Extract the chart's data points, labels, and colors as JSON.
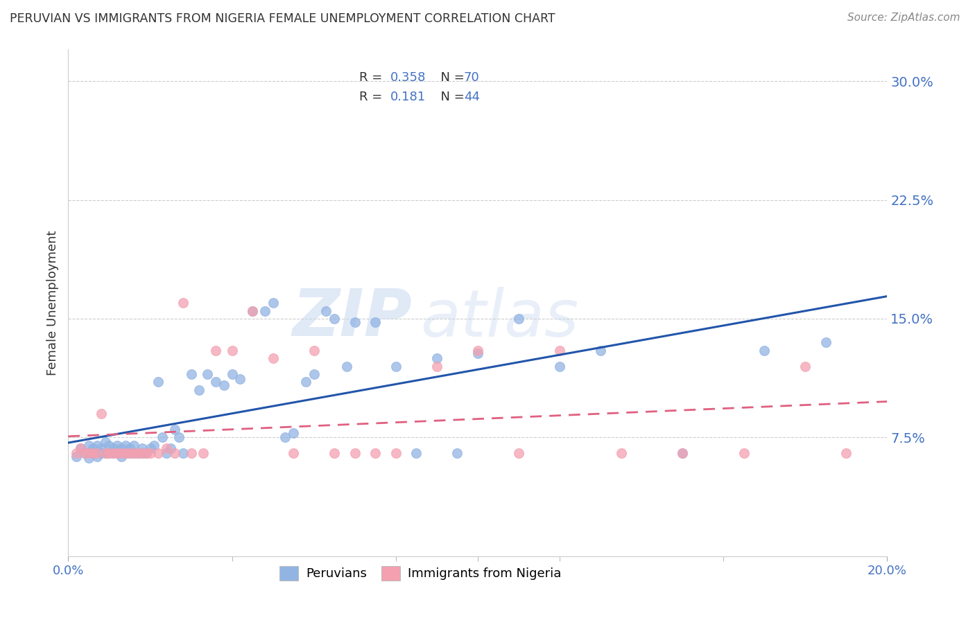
{
  "title": "PERUVIAN VS IMMIGRANTS FROM NIGERIA FEMALE UNEMPLOYMENT CORRELATION CHART",
  "source": "Source: ZipAtlas.com",
  "ylabel": "Female Unemployment",
  "ytick_labels": [
    "7.5%",
    "15.0%",
    "22.5%",
    "30.0%"
  ],
  "ytick_values": [
    0.075,
    0.15,
    0.225,
    0.3
  ],
  "xlim": [
    0.0,
    0.2
  ],
  "ylim": [
    0.0,
    0.32
  ],
  "color_peru": "#92b4e3",
  "color_nigeria": "#f4a0b0",
  "color_blue_text": "#4472c4",
  "line_color_peru": "#2255aa",
  "line_color_nigeria": "#e06080",
  "watermark_zip": "ZIP",
  "watermark_atlas": "atlas",
  "peruvian_x": [
    0.002,
    0.003,
    0.004,
    0.005,
    0.005,
    0.006,
    0.006,
    0.007,
    0.007,
    0.008,
    0.008,
    0.009,
    0.009,
    0.01,
    0.01,
    0.011,
    0.011,
    0.012,
    0.012,
    0.013,
    0.013,
    0.014,
    0.014,
    0.015,
    0.015,
    0.016,
    0.016,
    0.017,
    0.018,
    0.018,
    0.019,
    0.02,
    0.021,
    0.022,
    0.023,
    0.024,
    0.025,
    0.026,
    0.027,
    0.028,
    0.03,
    0.032,
    0.034,
    0.036,
    0.038,
    0.04,
    0.042,
    0.045,
    0.048,
    0.05,
    0.053,
    0.055,
    0.058,
    0.06,
    0.063,
    0.065,
    0.068,
    0.07,
    0.075,
    0.08,
    0.085,
    0.09,
    0.095,
    0.1,
    0.11,
    0.12,
    0.13,
    0.15,
    0.17,
    0.185
  ],
  "peruvian_y": [
    0.063,
    0.068,
    0.065,
    0.062,
    0.07,
    0.065,
    0.068,
    0.063,
    0.07,
    0.065,
    0.068,
    0.065,
    0.072,
    0.065,
    0.07,
    0.065,
    0.068,
    0.07,
    0.065,
    0.068,
    0.063,
    0.065,
    0.07,
    0.065,
    0.068,
    0.065,
    0.07,
    0.065,
    0.065,
    0.068,
    0.065,
    0.068,
    0.07,
    0.11,
    0.075,
    0.065,
    0.068,
    0.08,
    0.075,
    0.065,
    0.115,
    0.105,
    0.115,
    0.11,
    0.108,
    0.115,
    0.112,
    0.155,
    0.155,
    0.16,
    0.075,
    0.078,
    0.11,
    0.115,
    0.155,
    0.15,
    0.12,
    0.148,
    0.148,
    0.12,
    0.065,
    0.125,
    0.065,
    0.128,
    0.15,
    0.12,
    0.13,
    0.065,
    0.13,
    0.135
  ],
  "nigeria_x": [
    0.002,
    0.003,
    0.004,
    0.005,
    0.006,
    0.007,
    0.008,
    0.009,
    0.01,
    0.011,
    0.012,
    0.013,
    0.014,
    0.015,
    0.016,
    0.017,
    0.018,
    0.019,
    0.02,
    0.022,
    0.024,
    0.026,
    0.028,
    0.03,
    0.033,
    0.036,
    0.04,
    0.045,
    0.05,
    0.055,
    0.06,
    0.065,
    0.07,
    0.075,
    0.08,
    0.09,
    0.1,
    0.11,
    0.12,
    0.135,
    0.15,
    0.165,
    0.18,
    0.19
  ],
  "nigeria_y": [
    0.065,
    0.068,
    0.065,
    0.065,
    0.065,
    0.065,
    0.09,
    0.065,
    0.065,
    0.065,
    0.065,
    0.065,
    0.065,
    0.065,
    0.065,
    0.065,
    0.065,
    0.065,
    0.065,
    0.065,
    0.068,
    0.065,
    0.16,
    0.065,
    0.065,
    0.13,
    0.13,
    0.155,
    0.125,
    0.065,
    0.13,
    0.065,
    0.065,
    0.065,
    0.065,
    0.12,
    0.13,
    0.065,
    0.13,
    0.065,
    0.065,
    0.065,
    0.12,
    0.065
  ]
}
